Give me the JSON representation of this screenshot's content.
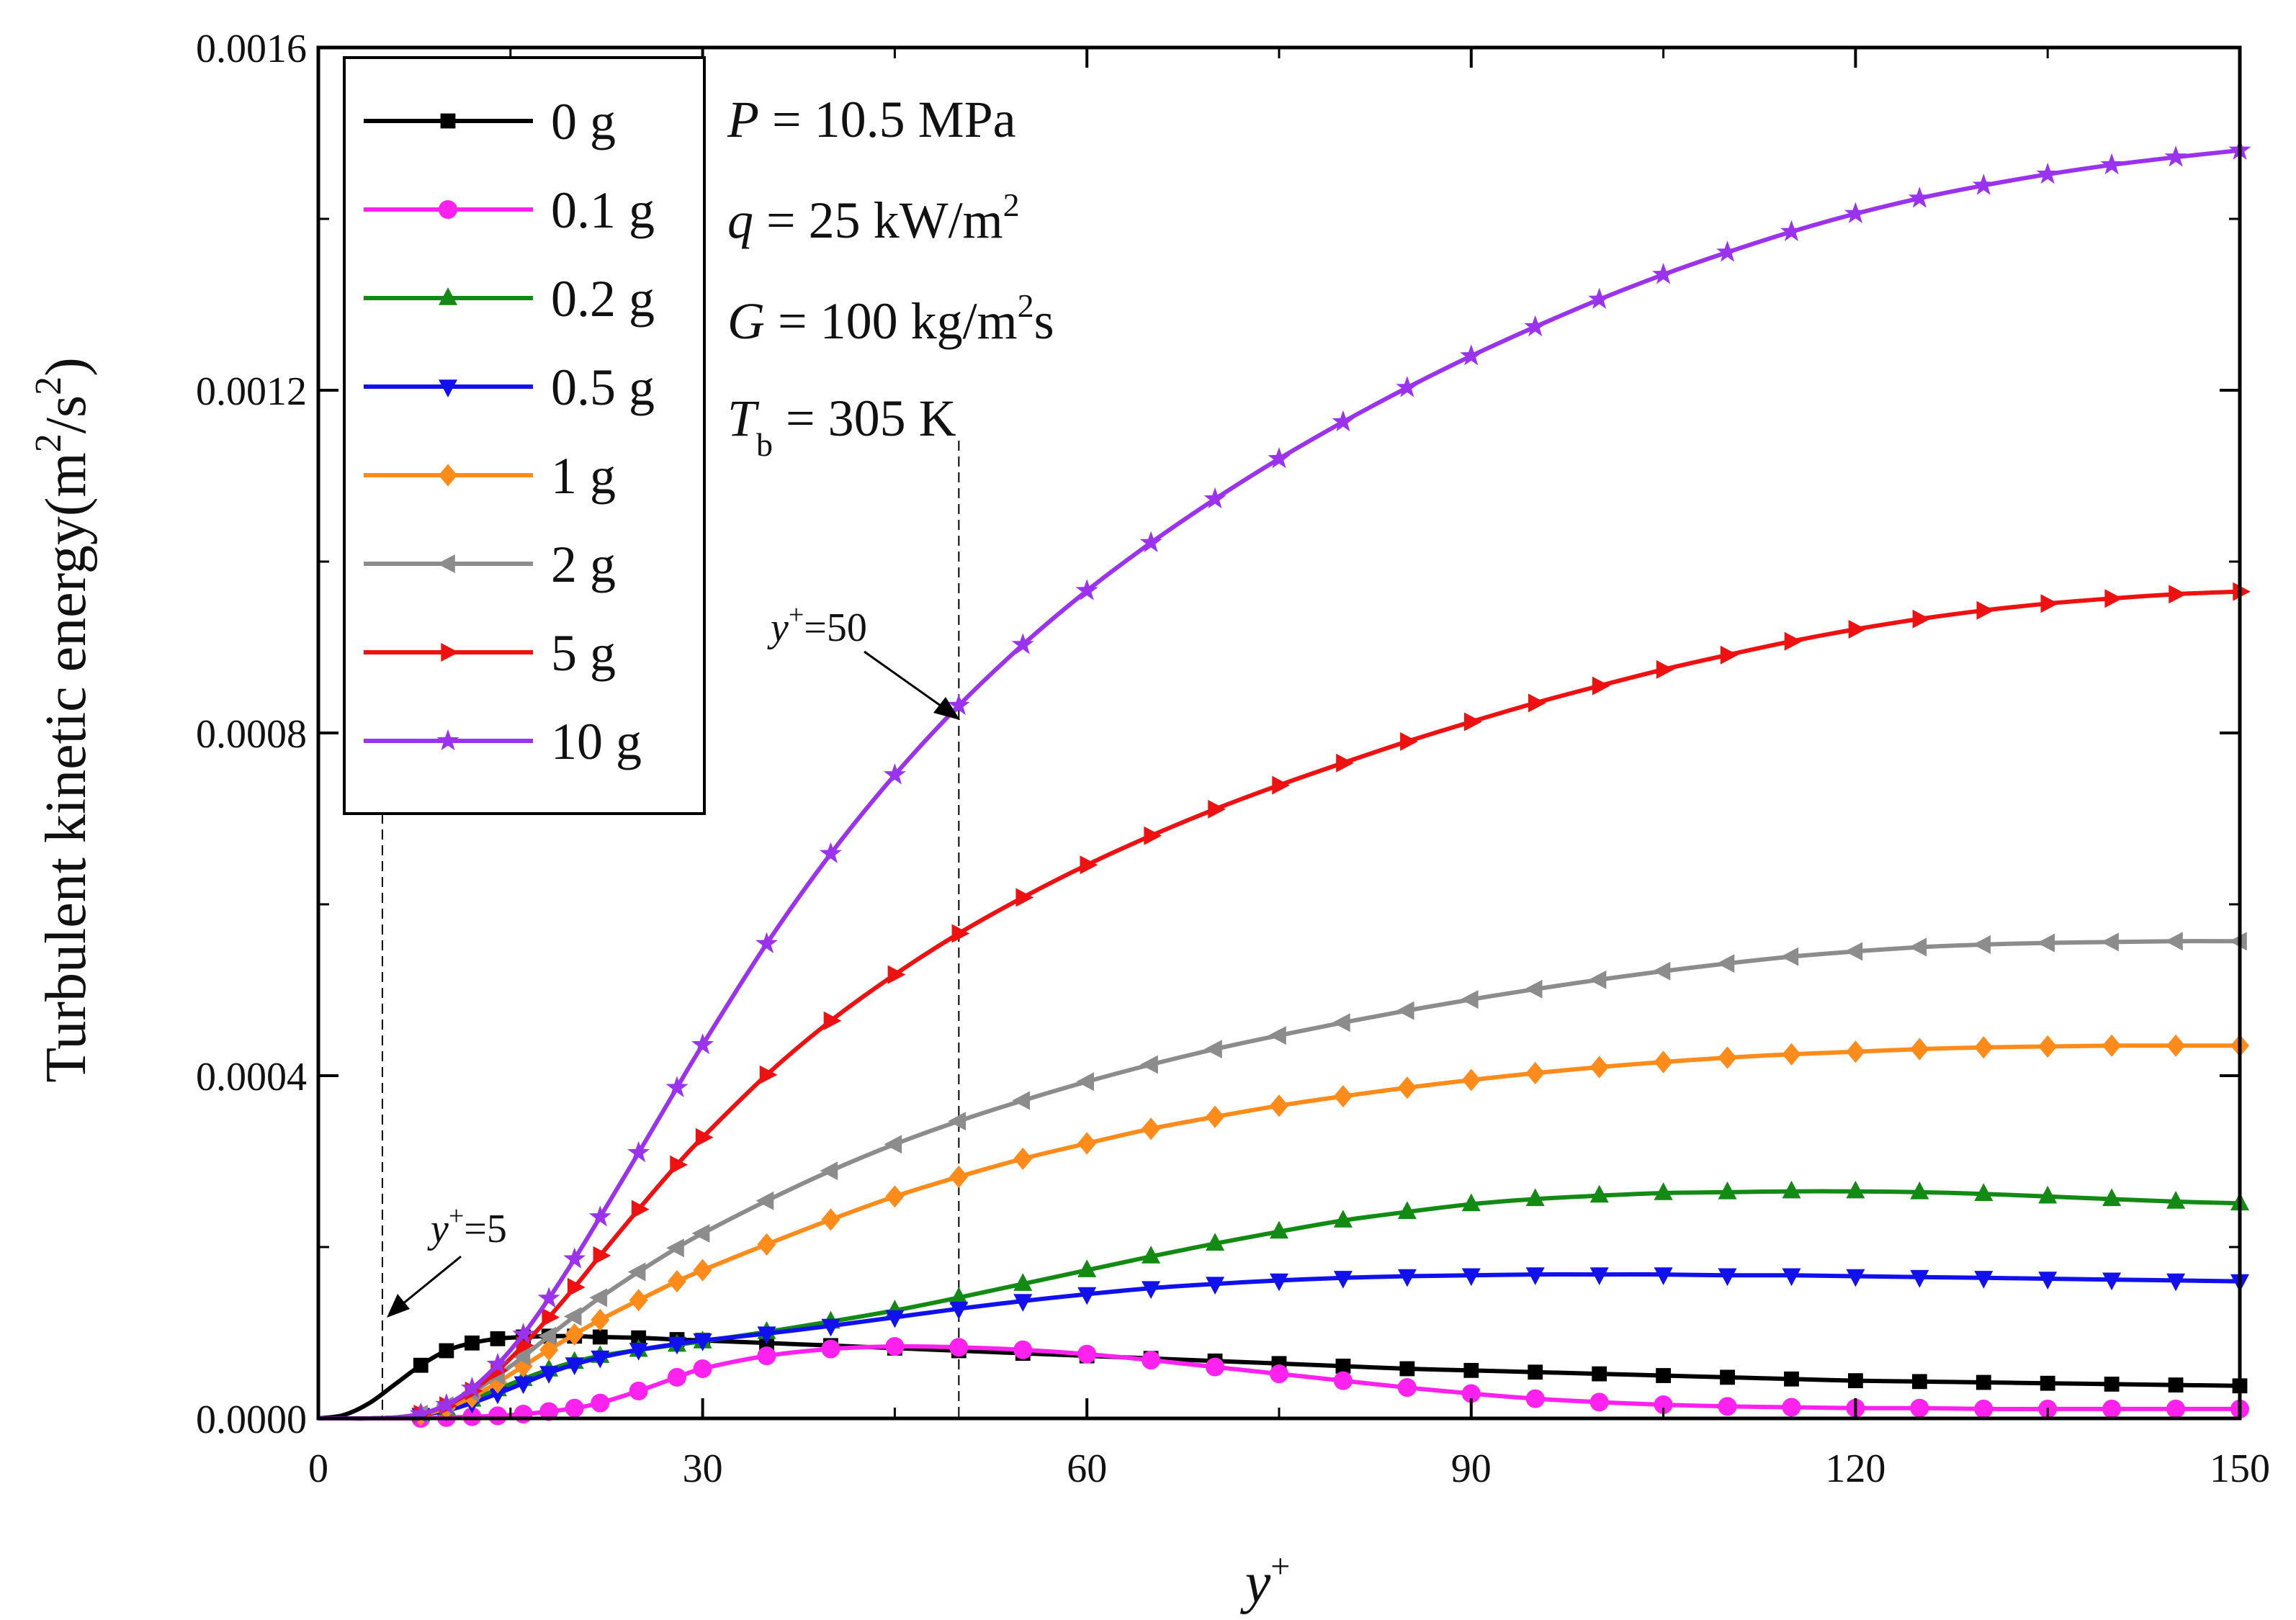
{
  "chart_data": {
    "type": "line",
    "title": "",
    "xlabel": "y",
    "xlabel_sup": "+",
    "ylabel": "Turbulent kinetic energy(m",
    "ylabel_unit": {
      "sup1": "2",
      "mid": "/s",
      "sup2": "2",
      "end": ")"
    },
    "xlim": [
      0,
      150
    ],
    "ylim": [
      0,
      0.0016
    ],
    "xticks": [
      "0",
      "30",
      "60",
      "90",
      "120",
      "150"
    ],
    "yticks": [
      "0.0000",
      "0.0004",
      "0.0008",
      "0.0012",
      "0.0016"
    ],
    "legend_position": "top-left",
    "conditions": {
      "p": {
        "var": "P",
        "text": " = 10.5 MPa"
      },
      "q": {
        "var": "q",
        "text": " = 25 kW/m",
        "sup": "2"
      },
      "g": {
        "var": "G",
        "text": " = 100 kg/m",
        "sup": "2",
        "tail": "s"
      },
      "t": {
        "var": "T",
        "sub": "b",
        "text": " = 305 K"
      }
    },
    "annotations": [
      {
        "name": "y-plus-5",
        "var": "y",
        "sup": "+",
        "text": "=5",
        "x": 5
      },
      {
        "name": "y-plus-50",
        "var": "y",
        "sup": "+",
        "text": "=50",
        "x": 50
      }
    ],
    "x": [
      0,
      2,
      4,
      6,
      8,
      10,
      12,
      14,
      16,
      18,
      20,
      22,
      25,
      28,
      30,
      35,
      40,
      45,
      50,
      55,
      60,
      65,
      70,
      75,
      80,
      85,
      90,
      95,
      100,
      105,
      110,
      115,
      120,
      125,
      130,
      135,
      140,
      145,
      150
    ],
    "series": [
      {
        "name": "0 g",
        "color": "#000000",
        "marker": "square",
        "values": [
          0,
          4e-06,
          1.8e-05,
          4e-05,
          6.2e-05,
          7.9e-05,
          8.8e-05,
          9.3e-05,
          9.5e-05,
          9.6e-05,
          9.6e-05,
          9.5e-05,
          9.4e-05,
          9.2e-05,
          9.1e-05,
          8.8e-05,
          8.5e-05,
          8.2e-05,
          7.9e-05,
          7.6e-05,
          7.3e-05,
          7e-05,
          6.7e-05,
          6.4e-05,
          6.1e-05,
          5.8e-05,
          5.6e-05,
          5.4e-05,
          5.2e-05,
          5e-05,
          4.8e-05,
          4.6e-05,
          4.4e-05,
          4.3e-05,
          4.2e-05,
          4.1e-05,
          4e-05,
          3.9e-05,
          3.8e-05
        ]
      },
      {
        "name": "0.1 g",
        "color": "#ff22ee",
        "marker": "circle",
        "values": [
          0,
          0,
          0,
          0,
          0,
          1e-06,
          2e-06,
          3e-06,
          5e-06,
          8e-06,
          1.2e-05,
          1.8e-05,
          3.2e-05,
          4.8e-05,
          5.8e-05,
          7.3e-05,
          8.1e-05,
          8.4e-05,
          8.3e-05,
          8e-05,
          7.5e-05,
          6.8e-05,
          6e-05,
          5.2e-05,
          4.4e-05,
          3.6e-05,
          2.9e-05,
          2.3e-05,
          1.9e-05,
          1.6e-05,
          1.4e-05,
          1.3e-05,
          1.2e-05,
          1.2e-05,
          1.1e-05,
          1.1e-05,
          1.1e-05,
          1.1e-05,
          1.1e-05
        ]
      },
      {
        "name": "0.2 g",
        "color": "#138a13",
        "marker": "triangle-up",
        "values": [
          0,
          0,
          0,
          1e-06,
          5e-06,
          1.2e-05,
          2.2e-05,
          3.4e-05,
          4.6e-05,
          5.7e-05,
          6.6e-05,
          7.3e-05,
          8e-05,
          8.6e-05,
          9e-05,
          0.000101,
          0.000113,
          0.000126,
          0.000141,
          0.000157,
          0.000173,
          0.000189,
          0.000204,
          0.000218,
          0.000231,
          0.000241,
          0.00025,
          0.000256,
          0.00026,
          0.000263,
          0.000264,
          0.000265,
          0.000265,
          0.000264,
          0.000262,
          0.000259,
          0.000256,
          0.000253,
          0.000251
        ]
      },
      {
        "name": "0.5 g",
        "color": "#1111ee",
        "marker": "triangle-down",
        "values": [
          0,
          0,
          0,
          1e-06,
          4e-06,
          9e-06,
          1.8e-05,
          2.9e-05,
          4.1e-05,
          5.3e-05,
          6.3e-05,
          7.1e-05,
          8e-05,
          8.7e-05,
          9.1e-05,
          9.9e-05,
          0.000108,
          0.000118,
          0.000128,
          0.000137,
          0.000145,
          0.000152,
          0.000157,
          0.000161,
          0.000164,
          0.000166,
          0.000167,
          0.000168,
          0.000168,
          0.000168,
          0.000167,
          0.000167,
          0.000166,
          0.000165,
          0.000164,
          0.000163,
          0.000162,
          0.000161,
          0.00016
        ]
      },
      {
        "name": "1 g",
        "color": "#ff8c1a",
        "marker": "diamond",
        "values": [
          0,
          0,
          0,
          1e-06,
          4e-06,
          1.2e-05,
          2.5e-05,
          4.2e-05,
          6.1e-05,
          8e-05,
          9.8e-05,
          0.000115,
          0.000138,
          0.00016,
          0.000173,
          0.000203,
          0.000232,
          0.000259,
          0.000282,
          0.000303,
          0.000321,
          0.000338,
          0.000352,
          0.000365,
          0.000376,
          0.000386,
          0.000395,
          0.000403,
          0.00041,
          0.000416,
          0.000421,
          0.000425,
          0.000428,
          0.000431,
          0.000433,
          0.000434,
          0.000435,
          0.000435,
          0.000435
        ]
      },
      {
        "name": "2 g",
        "color": "#8c8c8c",
        "marker": "triangle-left",
        "values": [
          0,
          0,
          0,
          1e-06,
          5e-06,
          1.5e-05,
          3e-05,
          5e-05,
          7.2e-05,
          9.6e-05,
          0.000119,
          0.000141,
          0.000171,
          0.000199,
          0.000216,
          0.000254,
          0.000289,
          0.00032,
          0.000347,
          0.000371,
          0.000393,
          0.000413,
          0.000431,
          0.000447,
          0.000462,
          0.000476,
          0.000489,
          0.000501,
          0.000512,
          0.000522,
          0.000531,
          0.000539,
          0.000545,
          0.00055,
          0.000553,
          0.000555,
          0.000556,
          0.000557,
          0.000557
        ]
      },
      {
        "name": "5 g",
        "color": "#ee1111",
        "marker": "triangle-right",
        "values": [
          0,
          0,
          0,
          1e-06,
          5e-06,
          1.5e-05,
          3.2e-05,
          5.6e-05,
          8.5e-05,
          0.000118,
          0.000153,
          0.00019,
          0.000244,
          0.000296,
          0.000328,
          0.000401,
          0.000464,
          0.000518,
          0.000566,
          0.000608,
          0.000646,
          0.00068,
          0.000711,
          0.000739,
          0.000765,
          0.00079,
          0.000813,
          0.000835,
          0.000855,
          0.000874,
          0.000891,
          0.000907,
          0.000921,
          0.000933,
          0.000943,
          0.000951,
          0.000957,
          0.000962,
          0.000965
        ]
      },
      {
        "name": "10 g",
        "color": "#9b33ee",
        "marker": "star",
        "values": [
          0,
          0,
          0,
          1e-06,
          5e-06,
          1.6e-05,
          3.5e-05,
          6.3e-05,
          9.8e-05,
          0.00014,
          0.000186,
          0.000235,
          0.00031,
          0.000386,
          0.000436,
          0.000554,
          0.000659,
          0.000751,
          0.000832,
          0.000903,
          0.000966,
          0.001022,
          0.001073,
          0.00112,
          0.001163,
          0.001203,
          0.00124,
          0.001274,
          0.001306,
          0.001335,
          0.001361,
          0.001385,
          0.001406,
          0.001424,
          0.001439,
          0.001452,
          0.001463,
          0.001472,
          0.00148
        ]
      }
    ]
  }
}
